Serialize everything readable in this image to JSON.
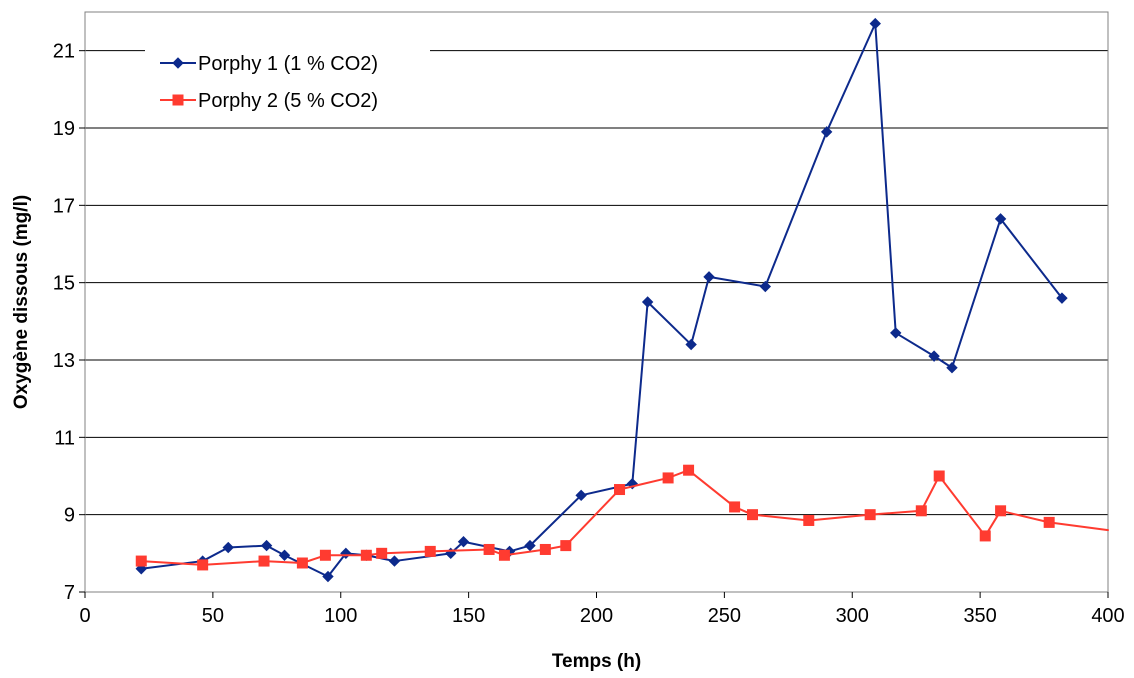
{
  "chart_data": {
    "type": "line",
    "title": "",
    "xlabel": "Temps (h)",
    "ylabel": "Oxygène dissous (mg/l)",
    "xlim": [
      0,
      400
    ],
    "ylim": [
      7,
      22
    ],
    "x_ticks": [
      0,
      50,
      100,
      150,
      200,
      250,
      300,
      350,
      400
    ],
    "y_ticks": [
      7,
      9,
      11,
      13,
      15,
      17,
      19,
      21
    ],
    "grid": "horizontal",
    "legend_position": "top-left",
    "series": [
      {
        "name": "Porphy 1 (1 % CO2)",
        "color": "#0d2a8c",
        "marker": "diamond",
        "x": [
          22,
          46,
          56,
          71,
          78,
          95,
          102,
          110,
          121,
          143,
          148,
          166,
          174,
          194,
          214,
          220,
          237,
          244,
          266,
          290,
          309,
          317,
          332,
          339,
          358,
          382
        ],
        "y": [
          7.6,
          7.8,
          8.15,
          8.2,
          7.95,
          7.4,
          8.0,
          7.95,
          7.8,
          8.0,
          8.3,
          8.05,
          8.2,
          9.5,
          9.8,
          14.5,
          13.4,
          15.15,
          14.9,
          18.9,
          21.7,
          13.7,
          13.1,
          12.8,
          16.65,
          14.6
        ]
      },
      {
        "name": "Porphy 2 (5 % CO2)",
        "color": "#ff3b30",
        "marker": "square",
        "x": [
          22,
          46,
          70,
          85,
          94,
          110,
          116,
          135,
          158,
          164,
          180,
          188,
          209,
          228,
          236,
          254,
          261,
          283,
          307,
          327,
          334,
          352,
          358,
          377,
          400
        ],
        "y": [
          7.8,
          7.7,
          7.8,
          7.75,
          7.95,
          7.95,
          8.0,
          8.05,
          8.1,
          7.95,
          8.1,
          8.2,
          9.65,
          9.95,
          10.15,
          9.2,
          9.0,
          8.85,
          9.0,
          9.1,
          10.0,
          8.45,
          9.1,
          8.8,
          8.6
        ]
      }
    ]
  }
}
